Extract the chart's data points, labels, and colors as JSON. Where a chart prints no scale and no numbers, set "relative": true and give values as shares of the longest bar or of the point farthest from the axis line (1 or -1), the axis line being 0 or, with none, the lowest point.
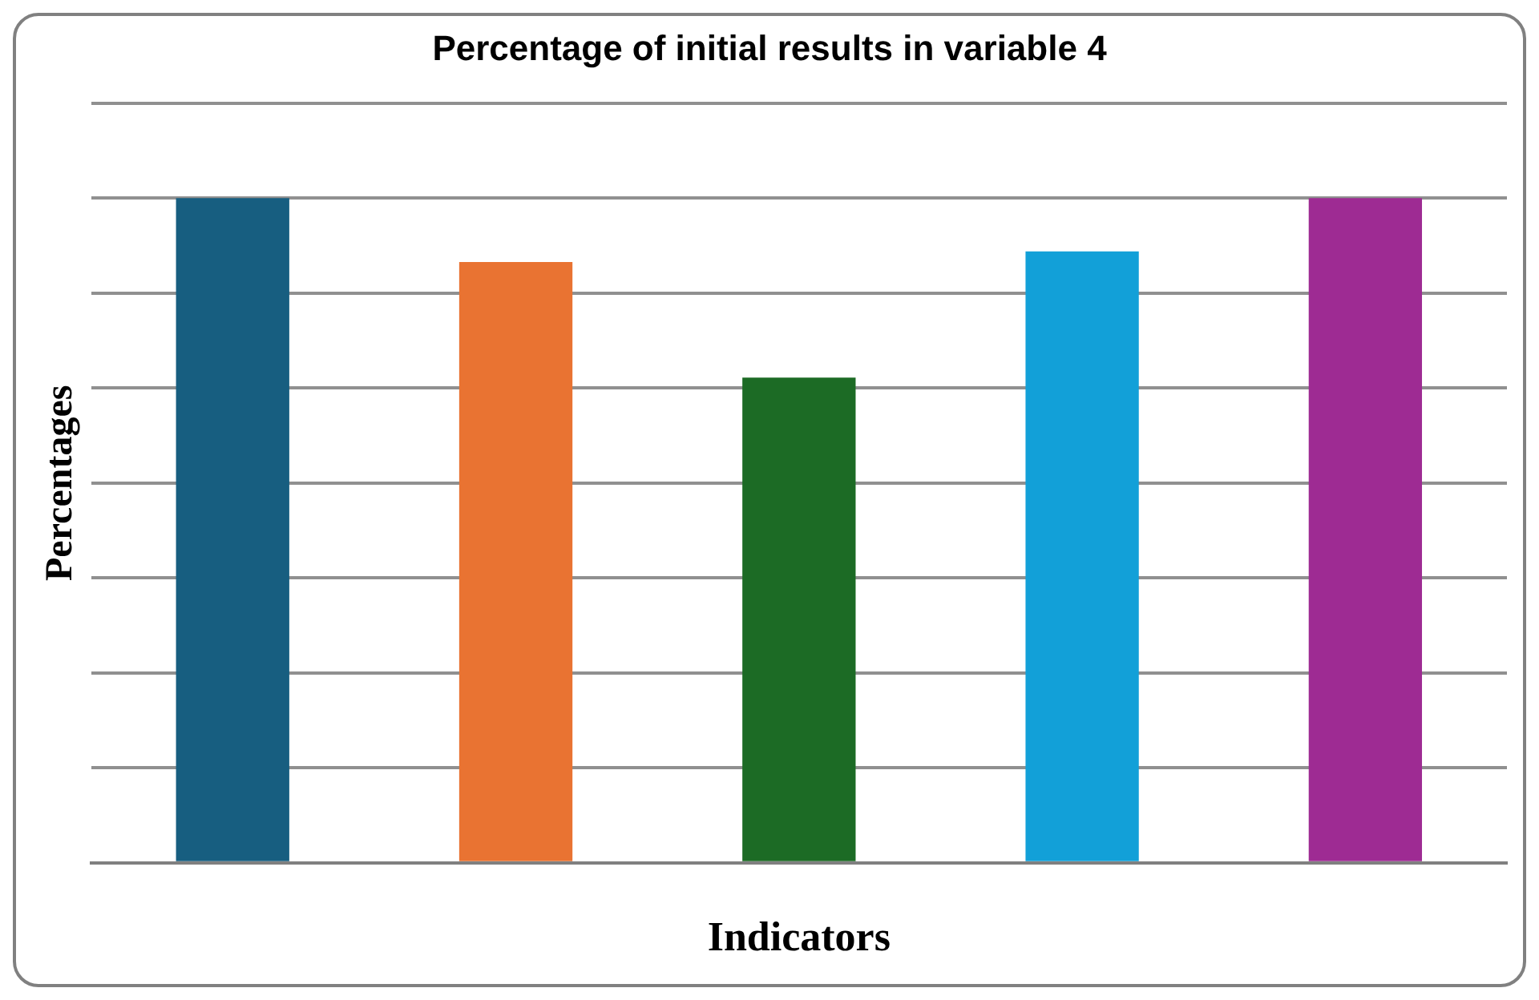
{
  "chart_data": {
    "type": "bar",
    "title": "Percentage of initial results in variable 4",
    "xlabel": "Indicators",
    "ylabel": "Percentages",
    "relative": true,
    "grid": "y",
    "categories": [
      null,
      null,
      null,
      null,
      null
    ],
    "values": [
      1,
      0.904,
      0.73,
      0.92,
      1
    ],
    "colors": [
      "#175e80",
      "#e97332",
      "#1c6b25",
      "#12a0d8",
      "#9e2b93"
    ]
  }
}
